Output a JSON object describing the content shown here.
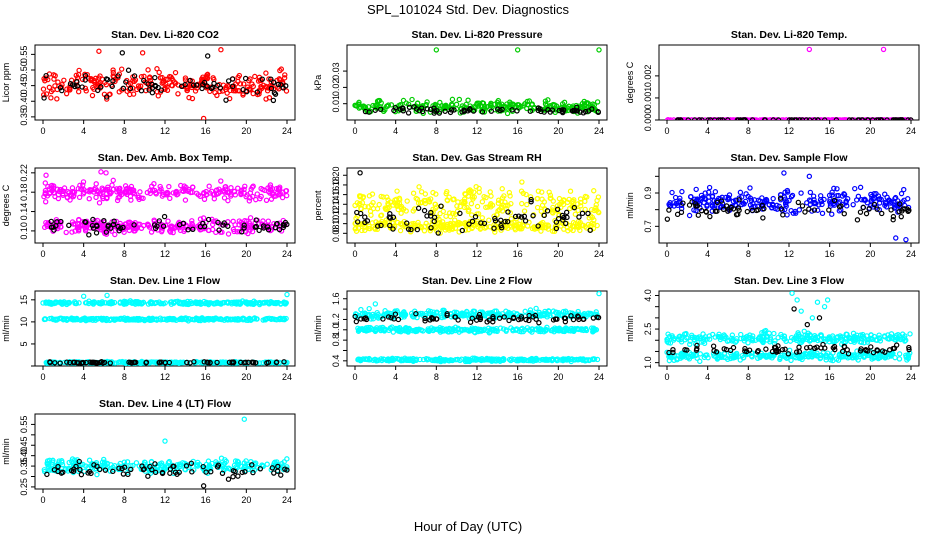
{
  "figure": {
    "title": "SPL_101024  Std. Dev. Diagnostics",
    "xlabel": "Hour of Day (UTC)"
  },
  "colors": {
    "red": "#ff0000",
    "green": "#00cc00",
    "magenta": "#ff00ff",
    "yellow": "#ffff00",
    "blue": "#0000ff",
    "cyan": "#00ffff",
    "black": "#000000"
  },
  "chart_data": [
    {
      "type": "scatter",
      "title": "Stan. Dev. Li-820 CO2",
      "ylabel": "Licor ppm",
      "xlim": [
        0,
        24
      ],
      "xticks": [
        0,
        4,
        8,
        12,
        16,
        20,
        24
      ],
      "ylim": [
        0.34,
        0.58
      ],
      "yticks": [
        0.35,
        0.4,
        0.45,
        0.5,
        0.55
      ],
      "ytick_labels": [
        "0.35",
        "0.40",
        "0.45",
        "0.50",
        "0.55"
      ],
      "series": [
        {
          "color": "red",
          "bands": [
            {
              "center": 0.455,
              "spread": 0.045
            }
          ],
          "outliers": [
            [
              5.5,
              0.56
            ],
            [
              9.8,
              0.555
            ],
            [
              17.5,
              0.565
            ],
            [
              15.8,
              0.345
            ]
          ]
        },
        {
          "color": "black",
          "bands": [
            {
              "center": 0.45,
              "spread": 0.04
            }
          ],
          "outliers": [
            [
              7.8,
              0.555
            ],
            [
              16.2,
              0.545
            ]
          ]
        }
      ]
    },
    {
      "type": "scatter",
      "title": "Stan. Dev. Li-820 Pressure",
      "ylabel": "kPa",
      "xlim": [
        0,
        24
      ],
      "xticks": [
        0,
        4,
        8,
        12,
        16,
        20,
        24
      ],
      "ylim": [
        0.0,
        0.046
      ],
      "yticks": [
        0.01,
        0.02,
        0.03
      ],
      "ytick_labels": [
        "0.01",
        "0.02",
        "0.03"
      ],
      "series": [
        {
          "color": "green",
          "bands": [
            {
              "center": 0.008,
              "spread": 0.004
            }
          ],
          "outliers": [
            [
              8.0,
              0.043
            ],
            [
              16.0,
              0.043
            ],
            [
              24.0,
              0.043
            ]
          ]
        },
        {
          "color": "black",
          "bands": [
            {
              "center": 0.006,
              "spread": 0.002
            }
          ],
          "outliers": []
        }
      ]
    },
    {
      "type": "scatter",
      "title": "Stan. Dev. Li-820 Temp.",
      "ylabel": "degrees C",
      "xlim": [
        0,
        24
      ],
      "xticks": [
        0,
        4,
        8,
        12,
        16,
        20,
        24
      ],
      "ylim": [
        0.0,
        0.0034
      ],
      "yticks": [
        0.0,
        0.001,
        0.002
      ],
      "ytick_labels": [
        "0.000",
        "0.001",
        "0.002"
      ],
      "series": [
        {
          "color": "magenta",
          "bands": [
            {
              "center": 0.0,
              "spread": 0.0
            }
          ],
          "outliers": [
            [
              14.0,
              0.0032
            ],
            [
              21.3,
              0.0032
            ]
          ]
        },
        {
          "color": "black",
          "bands": [
            {
              "center": 0.0,
              "spread": 0.0
            }
          ],
          "outliers": []
        }
      ]
    },
    {
      "type": "scatter",
      "title": "Stan. Dev. Amb. Box Temp.",
      "ylabel": "degrees C",
      "xlim": [
        0,
        24
      ],
      "xticks": [
        0,
        4,
        8,
        12,
        16,
        20,
        24
      ],
      "ylim": [
        0.075,
        0.23
      ],
      "yticks": [
        0.1,
        0.14,
        0.18,
        0.22
      ],
      "ytick_labels": [
        "0.10",
        "0.14",
        "0.18",
        "0.22"
      ],
      "series": [
        {
          "color": "magenta",
          "bands": [
            {
              "center": 0.18,
              "spread": 0.018
            },
            {
              "center": 0.11,
              "spread": 0.015
            }
          ],
          "outliers": [
            [
              0.3,
              0.215
            ],
            [
              6.2,
              0.22
            ],
            [
              5.7,
              0.222
            ]
          ]
        },
        {
          "color": "black",
          "bands": [
            {
              "center": 0.11,
              "spread": 0.015
            }
          ],
          "outliers": []
        }
      ]
    },
    {
      "type": "scatter",
      "title": "Stan. Dev. Gas Stream RH",
      "ylabel": "percent",
      "xlim": [
        0,
        24
      ],
      "xticks": [
        0,
        4,
        8,
        12,
        16,
        20,
        24
      ],
      "ylim": [
        0.06,
        0.215
      ],
      "yticks": [
        0.08,
        0.1,
        0.12,
        0.14,
        0.16,
        0.18,
        0.2
      ],
      "ytick_labels": [
        "0.08",
        "0.10",
        "0.12",
        "0.14",
        "0.16",
        "0.18",
        "0.20"
      ],
      "series": [
        {
          "color": "yellow",
          "bands": [
            {
              "center": 0.14,
              "spread": 0.035
            },
            {
              "center": 0.095,
              "spread": 0.012
            }
          ],
          "outliers": []
        },
        {
          "color": "black",
          "bands": [
            {
              "center": 0.11,
              "spread": 0.03
            }
          ],
          "outliers": [
            [
              0.5,
              0.205
            ]
          ]
        }
      ]
    },
    {
      "type": "scatter",
      "title": "Stan. Dev. Sample Flow",
      "ylabel": "ml/min",
      "xlim": [
        0,
        24
      ],
      "xticks": [
        0,
        4,
        8,
        12,
        16,
        20,
        24
      ],
      "ylim": [
        0.6,
        1.05
      ],
      "yticks": [
        0.7,
        0.8,
        0.9,
        1.0
      ],
      "ytick_labels": [
        "0.7",
        "",
        "0.9",
        ""
      ],
      "series": [
        {
          "color": "blue",
          "bands": [
            {
              "center": 0.85,
              "spread": 0.08
            }
          ],
          "outliers": [
            [
              11.5,
              1.02
            ],
            [
              14.0,
              1.0
            ],
            [
              23.5,
              0.62
            ],
            [
              22.5,
              0.63
            ]
          ]
        },
        {
          "color": "black",
          "bands": [
            {
              "center": 0.8,
              "spread": 0.06
            }
          ],
          "outliers": []
        }
      ]
    },
    {
      "type": "scatter",
      "title": "Stan. Dev. Line 1 Flow",
      "ylabel": "ml/min",
      "xlim": [
        0,
        24
      ],
      "xticks": [
        0,
        4,
        8,
        12,
        16,
        20,
        24
      ],
      "ylim": [
        0,
        17
      ],
      "yticks": [
        0,
        5,
        10,
        15
      ],
      "ytick_labels": [
        "",
        "5",
        "10",
        "15"
      ],
      "series": [
        {
          "color": "cyan",
          "bands": [
            {
              "center": 14.3,
              "spread": 0.35
            },
            {
              "center": 10.6,
              "spread": 0.3
            },
            {
              "center": 0.8,
              "spread": 0.2
            }
          ],
          "outliers": [
            [
              4.0,
              15.8
            ],
            [
              6.3,
              16.0
            ],
            [
              24.0,
              16.2
            ]
          ]
        },
        {
          "color": "black",
          "bands": [
            {
              "center": 0.8,
              "spread": 0.15
            }
          ],
          "outliers": []
        }
      ]
    },
    {
      "type": "scatter",
      "title": "Stan. Dev. Line 2 Flow",
      "ylabel": "ml/min",
      "xlim": [
        0,
        24
      ],
      "xticks": [
        0,
        4,
        8,
        12,
        16,
        20,
        24
      ],
      "ylim": [
        0.3,
        1.75
      ],
      "yticks": [
        0.4,
        0.6,
        0.8,
        1.0,
        1.2,
        1.4,
        1.6
      ],
      "ytick_labels": [
        "0.4",
        "",
        "0.8",
        "1.0",
        "1.2",
        "",
        "1.6"
      ],
      "series": [
        {
          "color": "cyan",
          "bands": [
            {
              "center": 1.3,
              "spread": 0.08
            },
            {
              "center": 1.0,
              "spread": 0.05
            },
            {
              "center": 0.42,
              "spread": 0.03
            }
          ],
          "outliers": [
            [
              24.0,
              1.7
            ],
            [
              2.0,
              1.5
            ]
          ]
        },
        {
          "color": "black",
          "bands": [
            {
              "center": 1.22,
              "spread": 0.08
            }
          ],
          "outliers": []
        }
      ]
    },
    {
      "type": "scatter",
      "title": "Stan. Dev. Line 3 Flow",
      "ylabel": "ml/min",
      "xlim": [
        0,
        24
      ],
      "xticks": [
        0,
        4,
        8,
        12,
        16,
        20,
        24
      ],
      "ylim": [
        0.85,
        4.2
      ],
      "yticks": [
        1.0,
        1.5,
        2.0,
        2.5,
        3.0,
        3.5,
        4.0
      ],
      "ytick_labels": [
        "1.0",
        "",
        "",
        "2.5",
        "",
        "",
        "4.0"
      ],
      "series": [
        {
          "color": "cyan",
          "bands": [
            {
              "center": 2.1,
              "spread": 0.25
            },
            {
              "center": 1.3,
              "spread": 0.2
            }
          ],
          "outliers": [
            [
              12.3,
              4.1
            ],
            [
              12.8,
              3.8
            ],
            [
              14.8,
              3.7
            ],
            [
              15.8,
              3.8
            ],
            [
              15.5,
              3.5
            ],
            [
              13.2,
              3.3
            ],
            [
              14.3,
              3.0
            ],
            [
              13.5,
              2.4
            ],
            [
              12.2,
              1.1
            ]
          ]
        },
        {
          "color": "black",
          "bands": [
            {
              "center": 1.6,
              "spread": 0.2
            }
          ],
          "outliers": [
            [
              12.5,
              3.4
            ],
            [
              15.0,
              3.0
            ],
            [
              13.8,
              2.7
            ]
          ]
        }
      ]
    },
    {
      "type": "scatter",
      "title": "Stan. Dev. Line 4 (LT) Flow",
      "ylabel": "ml/min",
      "xlim": [
        0,
        24
      ],
      "xticks": [
        0,
        4,
        8,
        12,
        16,
        20,
        24
      ],
      "ylim": [
        0.24,
        0.6
      ],
      "yticks": [
        0.25,
        0.3,
        0.35,
        0.4,
        0.45,
        0.5,
        0.55
      ],
      "ytick_labels": [
        "0.25",
        "",
        "0.35",
        "0.40",
        "0.45",
        "",
        "0.55"
      ],
      "series": [
        {
          "color": "cyan",
          "bands": [
            {
              "center": 0.35,
              "spread": 0.035
            }
          ],
          "outliers": [
            [
              12.0,
              0.47
            ],
            [
              19.8,
              0.575
            ]
          ]
        },
        {
          "color": "black",
          "bands": [
            {
              "center": 0.33,
              "spread": 0.04
            }
          ],
          "outliers": [
            [
              15.8,
              0.255
            ]
          ]
        }
      ]
    }
  ]
}
